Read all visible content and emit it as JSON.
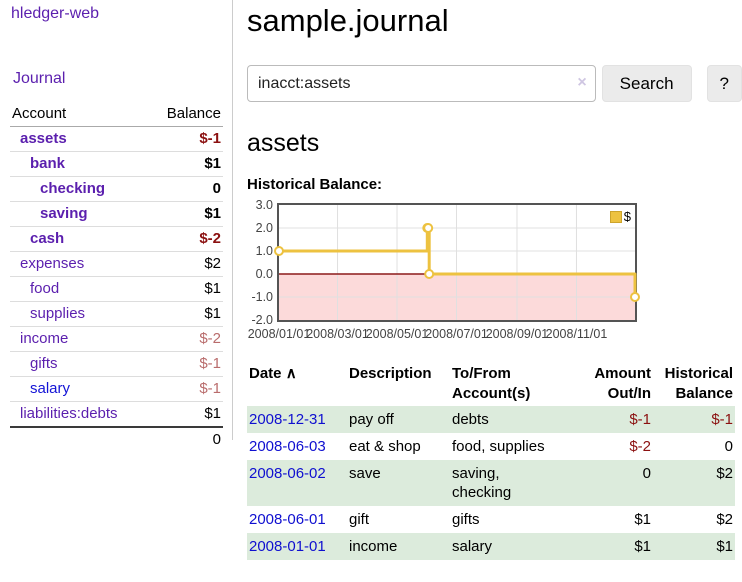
{
  "sidebar": {
    "brand": "hledger-web",
    "journal_label": "Journal",
    "accounts_header": {
      "account": "Account",
      "balance": "Balance"
    },
    "accounts": [
      {
        "name": "assets",
        "indent": 0,
        "bold": true,
        "balance": "$-1",
        "neg": "strong"
      },
      {
        "name": "bank",
        "indent": 1,
        "bold": true,
        "balance": "$1"
      },
      {
        "name": "checking",
        "indent": 2,
        "bold": true,
        "balance": "0"
      },
      {
        "name": "saving",
        "indent": 2,
        "bold": true,
        "balance": "$1"
      },
      {
        "name": "cash",
        "indent": 1,
        "bold": true,
        "balance": "$-2",
        "neg": "strong"
      },
      {
        "name": "expenses",
        "indent": 0,
        "bold": false,
        "balance": "$2"
      },
      {
        "name": "food",
        "indent": 1,
        "bold": false,
        "balance": "$1"
      },
      {
        "name": "supplies",
        "indent": 1,
        "bold": false,
        "balance": "$1"
      },
      {
        "name": "income",
        "indent": 0,
        "bold": false,
        "balance": "$-2",
        "neg": "soft"
      },
      {
        "name": "gifts",
        "indent": 1,
        "bold": false,
        "balance": "$-1",
        "neg": "soft"
      },
      {
        "name": "salary",
        "indent": 1,
        "bold": false,
        "balance": "$-1",
        "neg": "soft",
        "link": "blue"
      },
      {
        "name": "liabilities:debts",
        "indent": 0,
        "bold": false,
        "balance": "$1"
      }
    ],
    "total": "0"
  },
  "main": {
    "title": "sample.journal",
    "search": {
      "value": "inacct:assets",
      "clear_icon": "×",
      "button_label": "Search",
      "help_label": "?"
    },
    "account_heading": "assets"
  },
  "chart_data": {
    "type": "line",
    "style": "steps",
    "title": "Historical Balance:",
    "series": [
      {
        "name": "$",
        "color": "#edc240",
        "points": [
          {
            "date": "2008-01-01",
            "value": 1
          },
          {
            "date": "2008-06-01",
            "value": 2
          },
          {
            "date": "2008-06-02",
            "value": 2
          },
          {
            "date": "2008-06-03",
            "value": 0
          },
          {
            "date": "2008-12-31",
            "value": -1
          }
        ]
      }
    ],
    "x_range": [
      "2008-01-01",
      "2008-12-31"
    ],
    "y_range": [
      -2,
      3
    ],
    "x_ticks": [
      {
        "label": "2008/01/01",
        "date": "2008-01-01"
      },
      {
        "label": "2008/03/01",
        "date": "2008-03-01"
      },
      {
        "label": "2008/05/01",
        "date": "2008-05-01"
      },
      {
        "label": "2008/07/01",
        "date": "2008-07-01"
      },
      {
        "label": "2008/09/01",
        "date": "2008-09-01"
      },
      {
        "label": "2008/11/01",
        "date": "2008-11-01"
      }
    ],
    "y_ticks": [
      {
        "label": "3.0",
        "value": 3
      },
      {
        "label": "2.0",
        "value": 2
      },
      {
        "label": "1.0",
        "value": 1
      },
      {
        "label": "0.0",
        "value": 0
      },
      {
        "label": "-1.0",
        "value": -1
      },
      {
        "label": "-2.0",
        "value": -2
      }
    ],
    "grid": true,
    "legend_position": "top-right",
    "negative_zone_color": "#fcdada",
    "zero_line_color": "#8b1a1a",
    "grid_color": "#e0e0e0",
    "border_color": "#545454"
  },
  "register_table": {
    "headers": {
      "date": "Date",
      "sort_icon": "∧",
      "description": "Description",
      "to_from": "To/From Account(s)",
      "amount": "Amount Out/In",
      "balance": "Historical Balance"
    },
    "rows": [
      {
        "date": "2008-12-31",
        "description": "pay off",
        "to_from": "debts",
        "amount": "$-1",
        "amount_neg": true,
        "balance": "$-1",
        "balance_neg": true
      },
      {
        "date": "2008-06-03",
        "description": "eat & shop",
        "to_from": "food, supplies",
        "amount": "$-2",
        "amount_neg": true,
        "balance": "0",
        "balance_neg": false
      },
      {
        "date": "2008-06-02",
        "description": "save",
        "to_from": "saving, checking",
        "amount": "0",
        "amount_neg": false,
        "balance": "$2",
        "balance_neg": false
      },
      {
        "date": "2008-06-01",
        "description": "gift",
        "to_from": "gifts",
        "amount": "$1",
        "amount_neg": false,
        "balance": "$2",
        "balance_neg": false
      },
      {
        "date": "2008-01-01",
        "description": "income",
        "to_from": "salary",
        "amount": "$1",
        "amount_neg": false,
        "balance": "$1",
        "balance_neg": false
      }
    ]
  }
}
